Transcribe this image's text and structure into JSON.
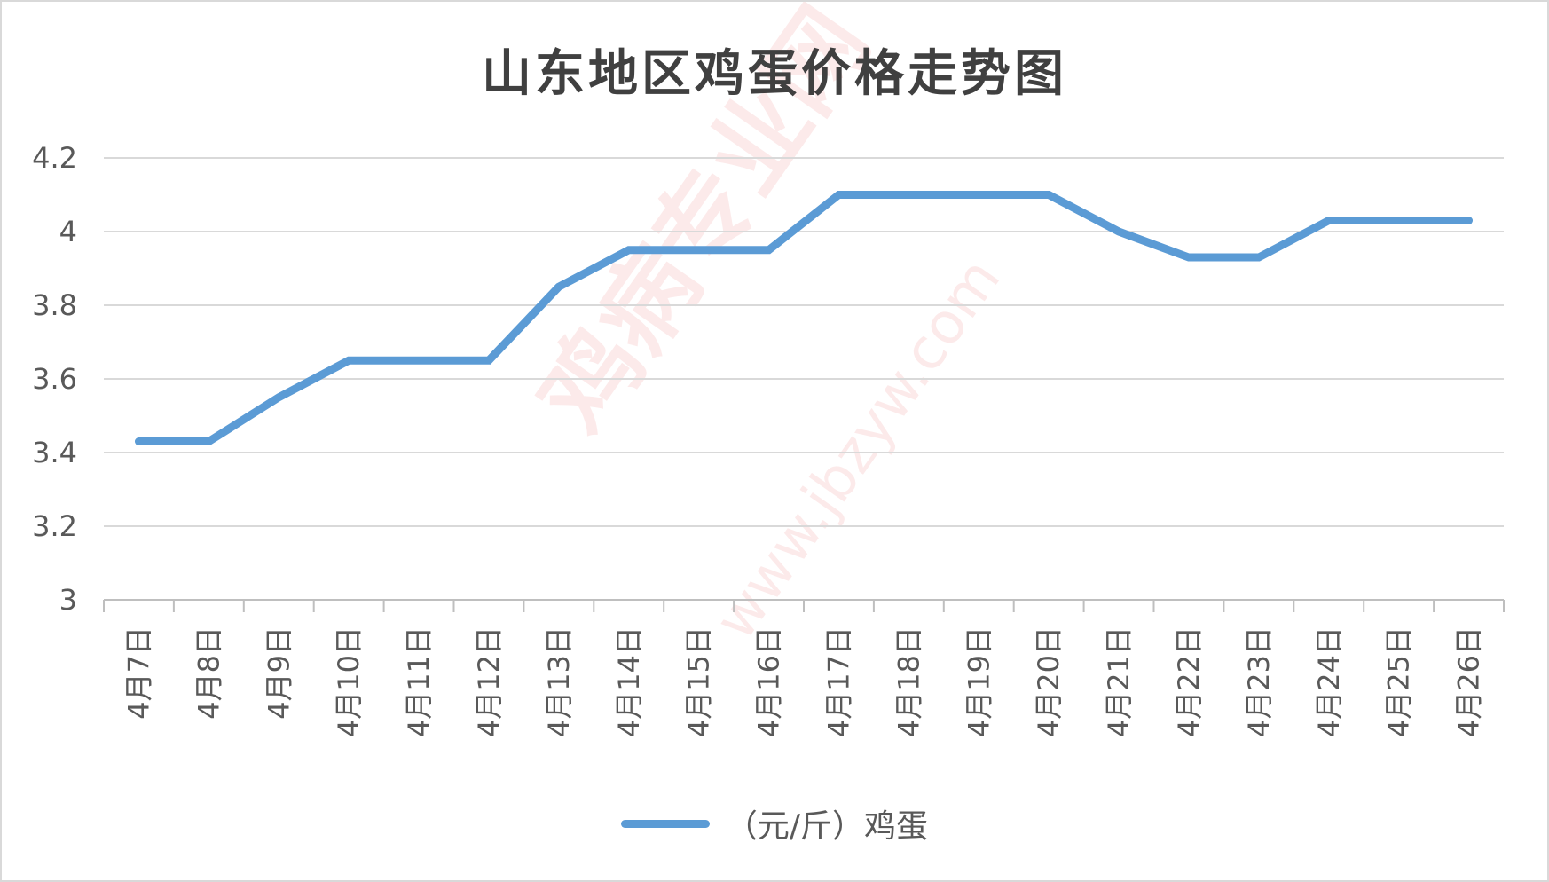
{
  "watermark": {
    "text": "鸡病专业网",
    "url": "www.jbzyw.com"
  },
  "chart_data": {
    "type": "line",
    "title": "山东地区鸡蛋价格走势图",
    "xlabel": "",
    "ylabel": "",
    "categories": [
      "4月7日",
      "4月8日",
      "4月9日",
      "4月10日",
      "4月11日",
      "4月12日",
      "4月13日",
      "4月14日",
      "4月15日",
      "4月16日",
      "4月17日",
      "4月18日",
      "4月19日",
      "4月20日",
      "4月21日",
      "4月22日",
      "4月23日",
      "4月24日",
      "4月25日",
      "4月26日"
    ],
    "series": [
      {
        "name": "（元/斤）鸡蛋",
        "color": "#5b9bd5",
        "values": [
          3.43,
          3.43,
          3.55,
          3.65,
          3.65,
          3.65,
          3.85,
          3.95,
          3.95,
          3.95,
          4.1,
          4.1,
          4.1,
          4.1,
          4.0,
          3.93,
          3.93,
          4.03,
          4.03,
          4.03
        ]
      }
    ],
    "ylim": [
      3,
      4.2
    ],
    "yticks": [
      3,
      3.2,
      3.4,
      3.6,
      3.8,
      4,
      4.2
    ],
    "ytick_labels": [
      "3",
      "3.2",
      "3.4",
      "3.6",
      "3.8",
      "4",
      "4.2"
    ],
    "grid": true,
    "legend_position": "bottom"
  }
}
